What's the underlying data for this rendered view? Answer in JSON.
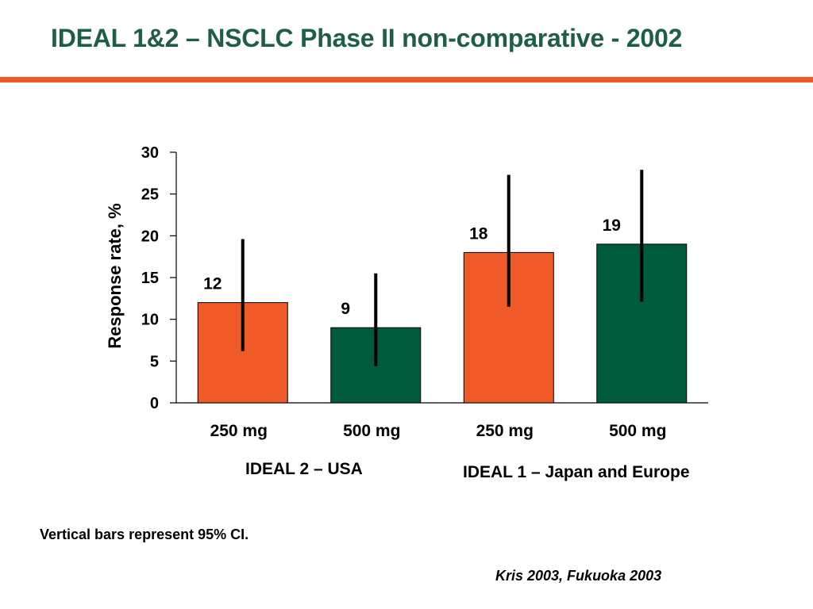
{
  "slide": {
    "title": "IDEAL 1&2 – NSCLC Phase II non-comparative - 2002",
    "title_color": "#1d5e45",
    "rule_color": "#f05a28"
  },
  "chart_data": {
    "type": "bar",
    "categories": [
      "250 mg",
      "500 mg",
      "250 mg",
      "500 mg"
    ],
    "values": [
      12,
      9,
      18,
      19
    ],
    "value_labels": [
      "12",
      "9",
      "18",
      "19"
    ],
    "ci_lower": [
      6.2,
      4.4,
      11.5,
      12.1
    ],
    "ci_upper": [
      19.6,
      15.5,
      27.3,
      27.9
    ],
    "bar_colors": [
      "#f05a28",
      "#005a3c",
      "#f05a28",
      "#005a3c"
    ],
    "ylabel": "Response rate, %",
    "ylim": [
      0,
      30
    ],
    "yticks": [
      0,
      5,
      10,
      15,
      20,
      25,
      30
    ],
    "grid": false,
    "groups": [
      {
        "label": "IDEAL 2 – USA",
        "categories": [
          0,
          1
        ]
      },
      {
        "label": "IDEAL 1 – Japan and Europe",
        "categories": [
          2,
          3
        ]
      }
    ]
  },
  "footnote": "Vertical bars represent 95% CI.",
  "citation": "Kris 2003, Fukuoka 2003"
}
